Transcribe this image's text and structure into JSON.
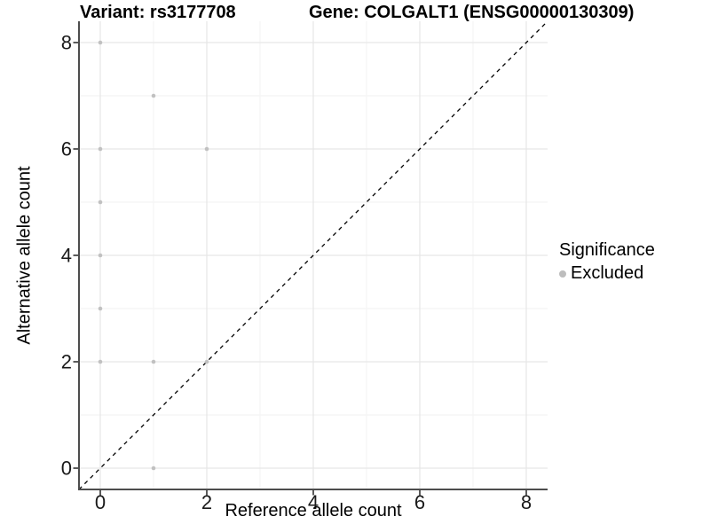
{
  "header": {
    "title_variant": "Variant: rs3177708",
    "title_gene": "Gene: COLGALT1 (ENSG00000130309)"
  },
  "chart_data": {
    "type": "scatter",
    "xlabel": "Reference allele count",
    "ylabel": "Alternative allele count",
    "xlim": [
      -0.4,
      8.4
    ],
    "ylim": [
      -0.4,
      8.4
    ],
    "x_ticks": [
      0,
      2,
      4,
      6,
      8
    ],
    "y_ticks": [
      0,
      2,
      4,
      6,
      8
    ],
    "x_minor": [
      1,
      3,
      5,
      7
    ],
    "y_minor": [
      1,
      3,
      5,
      7
    ],
    "grid": "major and minor, light gray on white",
    "reference_line": {
      "kind": "identity y=x",
      "style": "dashed",
      "color": "#000000"
    },
    "series": [
      {
        "name": "Excluded",
        "color": "#c1c1c1",
        "points": [
          [
            0,
            2
          ],
          [
            0,
            3
          ],
          [
            0,
            4
          ],
          [
            0,
            5
          ],
          [
            0,
            6
          ],
          [
            0,
            8
          ],
          [
            1,
            0
          ],
          [
            1,
            2
          ],
          [
            1,
            7
          ],
          [
            2,
            2
          ],
          [
            2,
            6
          ]
        ]
      }
    ],
    "legend": {
      "title": "Significance",
      "position": "right",
      "items": [
        {
          "label": "Excluded",
          "color": "#bdbdbd"
        }
      ]
    }
  },
  "colors": {
    "background": "#ffffff",
    "grid_major": "#e7e7e7",
    "grid_minor": "#f2f2f2",
    "axis_line": "#4d4d4d",
    "tick_mark": "#333333",
    "tick_text": "#1a1a1a",
    "point": "#c1c1c1",
    "reference_line": "#000000"
  }
}
